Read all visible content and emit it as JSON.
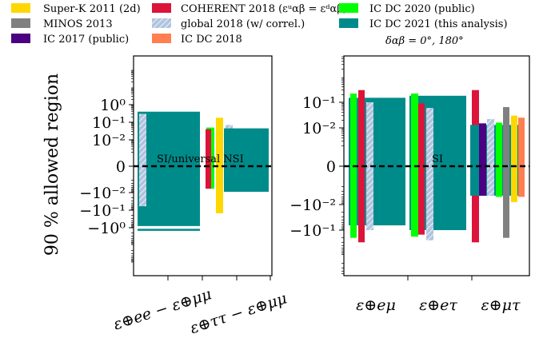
{
  "legend": [
    {
      "label": "Super-K 2011 (2d)",
      "color": "#ffd700",
      "hatch": false
    },
    {
      "label": "MINOS 2013",
      "color": "#808080",
      "hatch": false
    },
    {
      "label": "IC 2017 (public)",
      "color": "#4b0082",
      "hatch": false
    },
    {
      "label": "COHERENT 2018 (εᵘαβ = εᵈαβ)",
      "color": "#dc143c",
      "hatch": false
    },
    {
      "label": "global 2018 (w/ correl.)",
      "color": "#b0c4de",
      "hatch": true
    },
    {
      "label": "IC DC 2018",
      "color": "#ff7f50",
      "hatch": false
    },
    {
      "label": "IC DC 2020 (public)",
      "color": "#00ff00",
      "hatch": false
    },
    {
      "label": "IC DC 2021 (this analysis)",
      "color": "#008b8b",
      "hatch": false
    },
    {
      "label": "δαβ = 0°, 180°",
      "color": null,
      "hatch": false
    }
  ],
  "chart_data": [
    {
      "type": "bar",
      "scale": "symlog",
      "ylabel": "90 % allowed region",
      "yticks": [
        "10⁰",
        "10⁻¹",
        "10⁻²",
        "0",
        "−10⁻²",
        "−10⁻¹",
        "−10⁰"
      ],
      "categories": [
        "ε⊕ee − ε⊕μμ",
        "ε⊕ττ − ε⊕μμ"
      ],
      "annotation": "SI/universal NSI",
      "series": [
        {
          "name": "IC DC 2021 (this analysis)",
          "category": 0,
          "ranges": [
            [
              -0.8,
              0.4
            ],
            [
              -1.5,
              -1.15
            ]
          ]
        },
        {
          "name": "global 2018 (w/ correl.)",
          "category": 0,
          "ranges": [
            [
              -0.06,
              0.3
            ]
          ]
        },
        {
          "name": "IC DC 2020 (public)",
          "category": 1,
          "ranges": [
            [
              -0.006,
              0.05
            ]
          ]
        },
        {
          "name": "COHERENT 2018 (εᵘαβ = εᵈαβ)",
          "category": 1,
          "ranges": [
            [
              -0.006,
              0.04
            ]
          ]
        },
        {
          "name": "Super-K 2011 (2d)",
          "category": 1,
          "ranges": [
            [
              -0.15,
              0.18
            ]
          ]
        },
        {
          "name": "global 2018 (w/ correl.)",
          "category": 1,
          "ranges": [
            [
              -0.0045,
              0.07
            ]
          ]
        },
        {
          "name": "IC DC 2021 (this analysis)",
          "category": 1,
          "ranges": [
            [
              -0.009,
              0.045
            ]
          ]
        }
      ]
    },
    {
      "type": "bar",
      "scale": "symlog",
      "yticks": [
        "10⁻¹",
        "10⁻²",
        "0",
        "−10⁻²",
        "−10⁻¹"
      ],
      "categories": [
        "ε⊕eμ",
        "ε⊕eτ",
        "ε⊕μτ"
      ],
      "annotation": "SI",
      "series": [
        {
          "name": "IC DC 2021 (this analysis)",
          "category": 0,
          "ranges": [
            [
              -0.065,
              0.15
            ]
          ]
        },
        {
          "name": "IC DC 2020 (public)",
          "category": 0,
          "ranges": [
            [
              -0.2,
              0.22
            ]
          ]
        },
        {
          "name": "COHERENT 2018 (εᵘαβ = εᵈαβ)",
          "category": 0,
          "ranges": [
            [
              -0.3,
              0.3
            ]
          ]
        },
        {
          "name": "global 2018 (w/ correl.)",
          "category": 0,
          "ranges": [
            [
              -0.1,
              0.1
            ]
          ]
        },
        {
          "name": "IC DC 2021 (this analysis)",
          "category": 1,
          "ranges": [
            [
              -0.1,
              0.18
            ]
          ]
        },
        {
          "name": "IC DC 2020 (public)",
          "category": 1,
          "ranges": [
            [
              -0.18,
              0.22
            ]
          ]
        },
        {
          "name": "COHERENT 2018 (εᵘαβ = εᵈαβ)",
          "category": 1,
          "ranges": [
            [
              -0.15,
              0.09
            ]
          ]
        },
        {
          "name": "global 2018 (w/ correl.)",
          "category": 1,
          "ranges": [
            [
              -0.25,
              0.06
            ]
          ]
        },
        {
          "name": "COHERENT 2018 (εᵘαβ = εᵈαβ)",
          "category": 2,
          "ranges": [
            [
              -0.3,
              0.3
            ]
          ]
        },
        {
          "name": "IC DC 2021 (this analysis)",
          "category": 2,
          "ranges": [
            [
              -0.0045,
              0.013
            ]
          ]
        },
        {
          "name": "IC 2017 (public)",
          "category": 2,
          "ranges": [
            [
              -0.0045,
              0.015
            ]
          ]
        },
        {
          "name": "global 2018 (w/ correl.)",
          "category": 2,
          "ranges": [
            [
              -0.0045,
              0.022
            ]
          ]
        },
        {
          "name": "IC DC 2020 (public)",
          "category": 2,
          "ranges": [
            [
              -0.005,
              0.016
            ]
          ]
        },
        {
          "name": "MINOS 2013",
          "category": 2,
          "ranges": [
            [
              -0.2,
              0.065
            ]
          ]
        },
        {
          "name": "Super-K 2011 (2d)",
          "category": 2,
          "ranges": [
            [
              -0.008,
              0.03
            ]
          ]
        },
        {
          "name": "IC DC 2018",
          "category": 2,
          "ranges": [
            [
              -0.005,
              0.025
            ]
          ]
        }
      ]
    }
  ]
}
